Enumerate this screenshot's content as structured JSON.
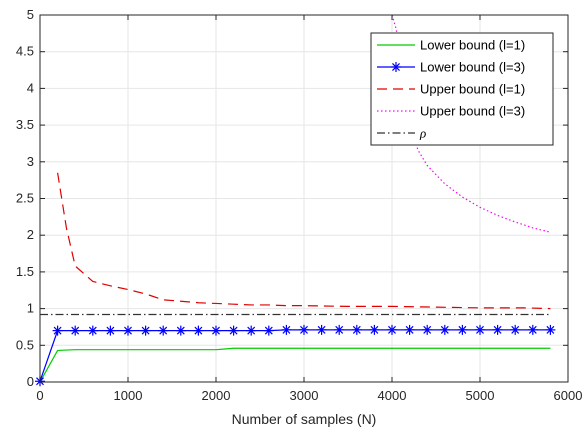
{
  "chart_data": {
    "type": "line",
    "title": "",
    "xlabel": "Number of samples (N)",
    "ylabel": "",
    "xlim": [
      0,
      6000
    ],
    "ylim": [
      0,
      5
    ],
    "x_ticks": [
      0,
      1000,
      2000,
      3000,
      4000,
      5000,
      6000
    ],
    "y_ticks": [
      0,
      0.5,
      1,
      1.5,
      2,
      2.5,
      3,
      3.5,
      4,
      4.5,
      5
    ],
    "x_tick_labels": [
      "0",
      "1000",
      "2000",
      "3000",
      "4000",
      "5000",
      "6000"
    ],
    "y_tick_labels": [
      "0",
      "0.5",
      "1",
      "1.5",
      "2",
      "2.5",
      "3",
      "3.5",
      "4",
      "4.5",
      "5"
    ],
    "grid": true,
    "legend_position": "top-right",
    "series": [
      {
        "name": "Lower bound (l=1)",
        "color": "#00cc00",
        "style": "solid",
        "marker": "none",
        "x": [
          0,
          200,
          400,
          600,
          800,
          1000,
          1200,
          1400,
          1600,
          1800,
          2000,
          2100,
          2200,
          2400,
          2600,
          2800,
          3000,
          3500,
          4000,
          4500,
          5000,
          5500,
          5800
        ],
        "y": [
          0,
          0.43,
          0.44,
          0.44,
          0.44,
          0.44,
          0.44,
          0.44,
          0.44,
          0.44,
          0.44,
          0.45,
          0.46,
          0.46,
          0.46,
          0.46,
          0.46,
          0.46,
          0.46,
          0.46,
          0.46,
          0.46,
          0.46
        ]
      },
      {
        "name": "Lower bound (l=3)",
        "color": "#0000ff",
        "style": "solid",
        "marker": "asterisk",
        "x": [
          0,
          200,
          400,
          600,
          800,
          1000,
          1200,
          1400,
          1600,
          1800,
          2000,
          2200,
          2400,
          2600,
          2800,
          3000,
          3200,
          3400,
          3600,
          3800,
          4000,
          4200,
          4400,
          4600,
          4800,
          5000,
          5200,
          5400,
          5600,
          5800
        ],
        "y": [
          0.01,
          0.7,
          0.7,
          0.7,
          0.7,
          0.7,
          0.7,
          0.7,
          0.7,
          0.7,
          0.7,
          0.7,
          0.7,
          0.7,
          0.71,
          0.71,
          0.71,
          0.71,
          0.71,
          0.71,
          0.71,
          0.71,
          0.71,
          0.71,
          0.71,
          0.71,
          0.71,
          0.71,
          0.71,
          0.71
        ]
      },
      {
        "name": "Upper bound (l=1)",
        "color": "#e00000",
        "style": "dashed",
        "marker": "none",
        "x": [
          200,
          300,
          400,
          600,
          800,
          1000,
          1200,
          1400,
          1600,
          1800,
          2000,
          2200,
          2400,
          2600,
          2800,
          3000,
          3500,
          4000,
          4500,
          5000,
          5500,
          5800
        ],
        "y": [
          2.85,
          2.1,
          1.58,
          1.37,
          1.31,
          1.26,
          1.2,
          1.12,
          1.1,
          1.08,
          1.07,
          1.06,
          1.05,
          1.05,
          1.04,
          1.04,
          1.03,
          1.03,
          1.02,
          1.01,
          1.01,
          1.0
        ]
      },
      {
        "name": "Upper bound (l=3)",
        "color": "#ff00ff",
        "style": "dotted",
        "marker": "none",
        "x": [
          4000,
          4050,
          4100,
          4200,
          4300,
          4400,
          4600,
          4800,
          5000,
          5200,
          5400,
          5600,
          5800
        ],
        "y": [
          5.0,
          4.8,
          3.9,
          3.45,
          3.15,
          2.95,
          2.7,
          2.52,
          2.38,
          2.27,
          2.18,
          2.1,
          2.04
        ]
      },
      {
        "name": "ρ",
        "color": "#333333",
        "style": "dashdot",
        "marker": "none",
        "x": [
          0,
          5800
        ],
        "y": [
          0.92,
          0.92
        ]
      }
    ]
  }
}
